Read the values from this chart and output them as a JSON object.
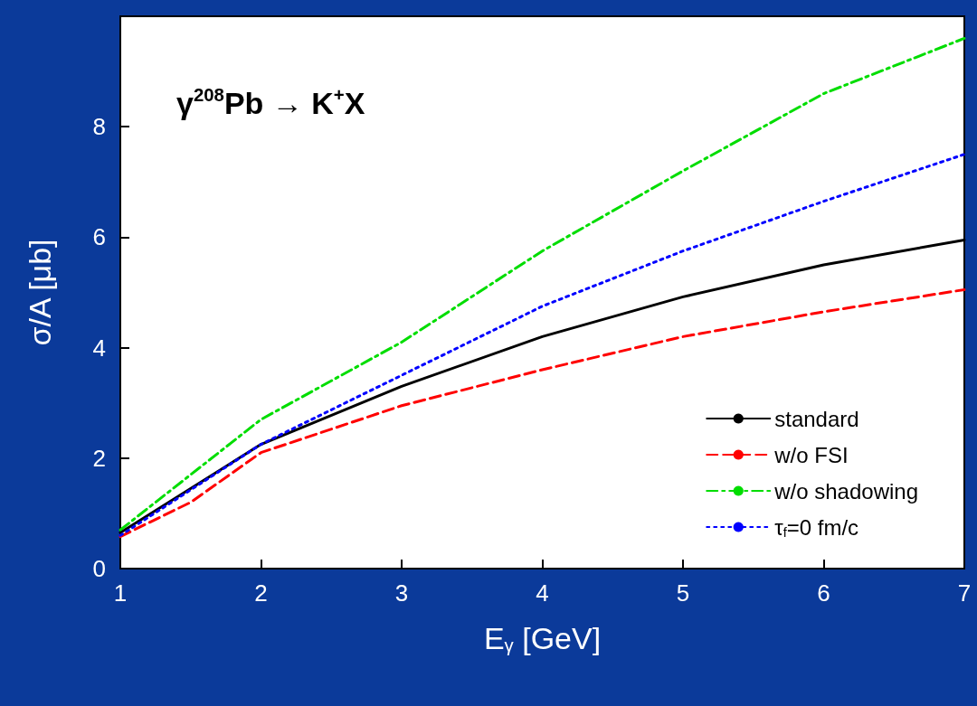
{
  "chart_data": {
    "type": "line",
    "xlabel": "E$_{γ}$ [GeV]",
    "ylabel": "σ/A [μb]",
    "annotations": [
      "γ$^{208}$Pb → K$^{+}$X"
    ],
    "xlim": [
      1,
      7
    ],
    "xticks": [
      1,
      2,
      3,
      4,
      5,
      6,
      7
    ],
    "ylim": [
      0,
      10
    ],
    "yticks": [
      0,
      2,
      4,
      6,
      8
    ],
    "grid": false,
    "legend": "bottom right",
    "marker": "none",
    "series": [
      {
        "name": "standard",
        "color": "#000000",
        "line_style": "solid",
        "x": [
          1,
          2,
          3,
          4,
          5,
          6,
          7
        ],
        "values": [
          0.65,
          2.25,
          3.3,
          4.2,
          4.92,
          5.5,
          5.95
        ]
      },
      {
        "name": "w/o FSI",
        "color": "#ff0000",
        "line_style": "dashed",
        "x": [
          1,
          1.5,
          2,
          3,
          4,
          5,
          6,
          7
        ],
        "values": [
          0.58,
          1.2,
          2.1,
          2.95,
          3.6,
          4.2,
          4.65,
          5.05
        ]
      },
      {
        "name": "w/o shadowing",
        "color": "#00dd00",
        "line_style": "dashdot",
        "x": [
          1,
          2,
          3,
          4,
          5,
          6,
          7
        ],
        "values": [
          0.7,
          2.7,
          4.1,
          5.75,
          7.2,
          8.6,
          9.6
        ]
      },
      {
        "name": "τ$_{f}$=0 fm/c",
        "color": "#0000ff",
        "line_style": "dotted",
        "x": [
          1,
          2,
          3,
          4,
          5,
          6,
          7
        ],
        "values": [
          0.6,
          2.25,
          3.5,
          4.75,
          5.75,
          6.65,
          7.5
        ]
      }
    ]
  }
}
